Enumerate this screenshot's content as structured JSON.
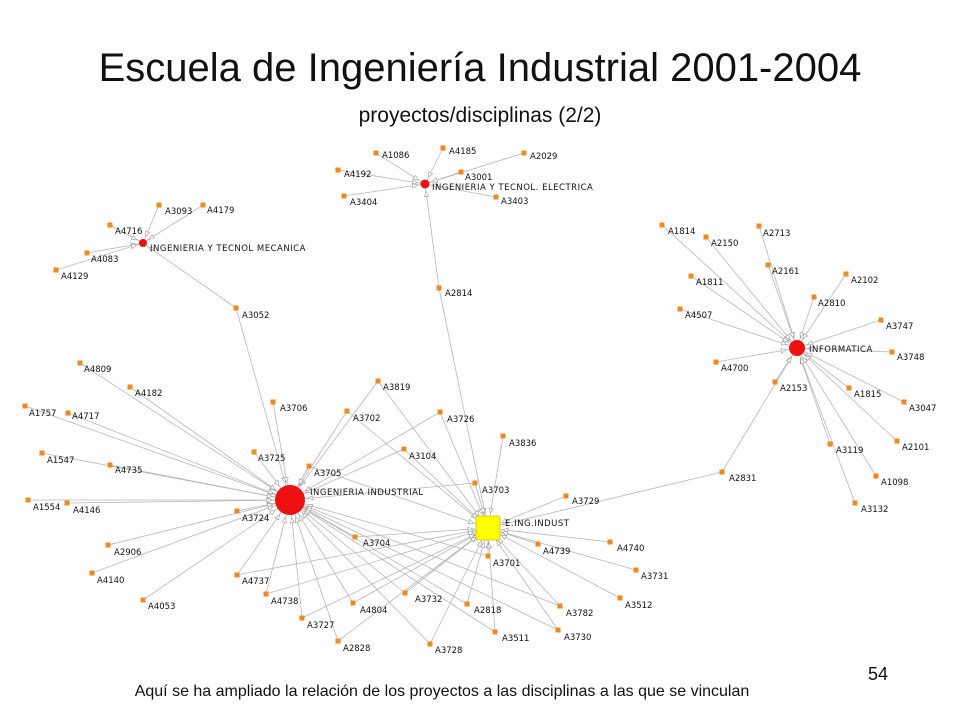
{
  "title": "Escuela de Ingeniería Industrial 2001-2004",
  "subtitle": "proyectos/disciplinas (2/2)",
  "footer": "Aquí se ha ampliado la relación de los proyectos a las disciplinas a las que se vinculan",
  "page_number": "54",
  "colors": {
    "hub": "#ee1111",
    "central_hub": "#ffff00",
    "leaf": "#ee8822",
    "edge": "#b8b8b8"
  },
  "network": {
    "hubs": [
      {
        "id": "ELEC",
        "label": "INGENIERIA Y TECNOL. ELECTRICA",
        "color": "#ee1111"
      },
      {
        "id": "MEC",
        "label": "INGENIERIA Y TECNOL MECANICA",
        "color": "#ee1111"
      },
      {
        "id": "INF",
        "label": "INFORMATICA",
        "color": "#ee1111"
      },
      {
        "id": "II",
        "label": "INGENIERIA INDUSTRIAL",
        "color": "#ee1111"
      },
      {
        "id": "EIND",
        "label": "E.ING.INDUST",
        "color": "#ffff00"
      }
    ],
    "projects": [
      {
        "id": "A1086",
        "links": [
          "ELEC"
        ]
      },
      {
        "id": "A4185",
        "links": [
          "ELEC"
        ]
      },
      {
        "id": "A2029",
        "links": [
          "ELEC"
        ]
      },
      {
        "id": "A4192",
        "links": [
          "ELEC"
        ]
      },
      {
        "id": "A3001",
        "links": [
          "ELEC"
        ]
      },
      {
        "id": "A3404",
        "links": [
          "ELEC"
        ]
      },
      {
        "id": "A3403",
        "links": [
          "ELEC"
        ]
      },
      {
        "id": "A2814",
        "links": [
          "ELEC",
          "EIND"
        ]
      },
      {
        "id": "A3093",
        "links": [
          "MEC"
        ]
      },
      {
        "id": "A4179",
        "links": [
          "MEC"
        ]
      },
      {
        "id": "A4716",
        "links": [
          "MEC"
        ]
      },
      {
        "id": "A4083",
        "links": [
          "MEC"
        ]
      },
      {
        "id": "A4129",
        "links": [
          "MEC"
        ]
      },
      {
        "id": "A3052",
        "links": [
          "MEC",
          "II"
        ]
      },
      {
        "id": "A1814",
        "links": [
          "INF"
        ]
      },
      {
        "id": "A2150",
        "links": [
          "INF"
        ]
      },
      {
        "id": "A2713",
        "links": [
          "INF"
        ]
      },
      {
        "id": "A2161",
        "links": [
          "INF"
        ]
      },
      {
        "id": "A2102",
        "links": [
          "INF"
        ]
      },
      {
        "id": "A1811",
        "links": [
          "INF"
        ]
      },
      {
        "id": "A2810",
        "links": [
          "INF"
        ]
      },
      {
        "id": "A4507",
        "links": [
          "INF"
        ]
      },
      {
        "id": "A3747",
        "links": [
          "INF"
        ]
      },
      {
        "id": "A3748",
        "links": [
          "INF"
        ]
      },
      {
        "id": "A4700",
        "links": [
          "INF"
        ]
      },
      {
        "id": "A2153",
        "links": [
          "INF"
        ]
      },
      {
        "id": "A1815",
        "links": [
          "INF"
        ]
      },
      {
        "id": "A3047",
        "links": [
          "INF"
        ]
      },
      {
        "id": "A3119",
        "links": [
          "INF"
        ]
      },
      {
        "id": "A2101",
        "links": [
          "INF"
        ]
      },
      {
        "id": "A1098",
        "links": [
          "INF"
        ]
      },
      {
        "id": "A3132",
        "links": [
          "INF"
        ]
      },
      {
        "id": "A2831",
        "links": [
          "INF",
          "EIND"
        ]
      },
      {
        "id": "A4809",
        "links": [
          "II"
        ]
      },
      {
        "id": "A4182",
        "links": [
          "II"
        ]
      },
      {
        "id": "A1757",
        "links": [
          "II"
        ]
      },
      {
        "id": "A4717",
        "links": [
          "II"
        ]
      },
      {
        "id": "A3706",
        "links": [
          "II"
        ]
      },
      {
        "id": "A3819",
        "links": [
          "II",
          "EIND"
        ]
      },
      {
        "id": "A3702",
        "links": [
          "II",
          "EIND"
        ]
      },
      {
        "id": "A3726",
        "links": [
          "II",
          "EIND"
        ]
      },
      {
        "id": "A1547",
        "links": [
          "II"
        ]
      },
      {
        "id": "A3725",
        "links": [
          "II"
        ]
      },
      {
        "id": "A4735",
        "links": [
          "II"
        ]
      },
      {
        "id": "A3705",
        "links": [
          "II",
          "EIND"
        ]
      },
      {
        "id": "A3104",
        "links": [
          "II",
          "EIND"
        ]
      },
      {
        "id": "A3836",
        "links": [
          "EIND"
        ]
      },
      {
        "id": "A3703",
        "links": [
          "II",
          "EIND"
        ]
      },
      {
        "id": "A1554",
        "links": [
          "II"
        ]
      },
      {
        "id": "A4146",
        "links": [
          "II"
        ]
      },
      {
        "id": "A3724",
        "links": [
          "II"
        ]
      },
      {
        "id": "A3729",
        "links": [
          "EIND"
        ]
      },
      {
        "id": "A2906",
        "links": [
          "II"
        ]
      },
      {
        "id": "A3704",
        "links": [
          "II",
          "EIND"
        ]
      },
      {
        "id": "A4739",
        "links": [
          "EIND"
        ]
      },
      {
        "id": "A4740",
        "links": [
          "EIND"
        ]
      },
      {
        "id": "A3701",
        "links": [
          "II",
          "EIND"
        ]
      },
      {
        "id": "A4140",
        "links": [
          "II"
        ]
      },
      {
        "id": "A4737",
        "links": [
          "II",
          "EIND"
        ]
      },
      {
        "id": "A3731",
        "links": [
          "EIND"
        ]
      },
      {
        "id": "A4053",
        "links": [
          "II"
        ]
      },
      {
        "id": "A4738",
        "links": [
          "II",
          "EIND"
        ]
      },
      {
        "id": "A3732",
        "links": [
          "II",
          "EIND"
        ]
      },
      {
        "id": "A2818",
        "links": [
          "II",
          "EIND"
        ]
      },
      {
        "id": "A3782",
        "links": [
          "II",
          "EIND"
        ]
      },
      {
        "id": "A3512",
        "links": [
          "EIND"
        ]
      },
      {
        "id": "A4804",
        "links": [
          "II",
          "EIND"
        ]
      },
      {
        "id": "A3727",
        "links": [
          "II",
          "EIND"
        ]
      },
      {
        "id": "A3511",
        "links": [
          "II",
          "EIND"
        ]
      },
      {
        "id": "A3730",
        "links": [
          "II",
          "EIND"
        ]
      },
      {
        "id": "A2828",
        "links": [
          "II",
          "EIND"
        ]
      },
      {
        "id": "A3728",
        "links": [
          "II",
          "EIND"
        ]
      }
    ]
  }
}
